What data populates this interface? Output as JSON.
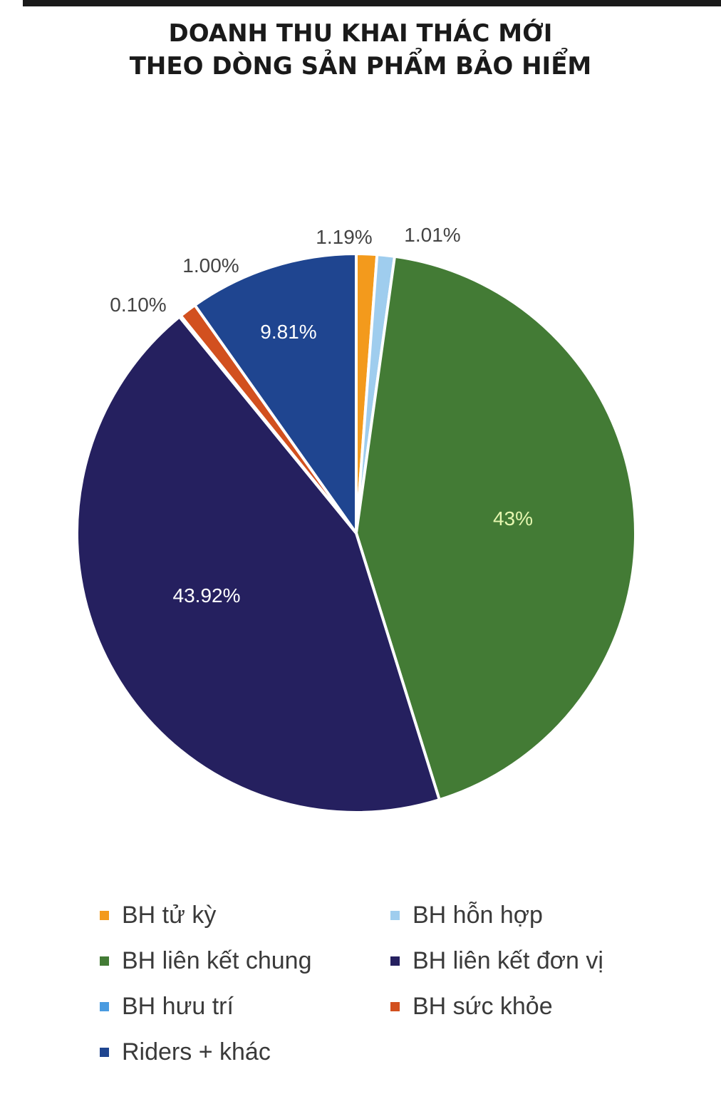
{
  "title": {
    "line1": "DOANH THU KHAI THÁC MỚI",
    "line2": "THEO DÒNG SẢN PHẨM BẢO HIỂM"
  },
  "chart_data": {
    "type": "pie",
    "title": "DOANH THU KHAI THÁC MỚI THEO DÒNG SẢN PHẨM BẢO HIỂM",
    "legend_position": "bottom",
    "slices": [
      {
        "name": "BH tử kỳ",
        "value": 1.19,
        "label": "1.19%",
        "color": "#f39a1c"
      },
      {
        "name": "BH hỗn hợp",
        "value": 1.01,
        "label": "1.01%",
        "color": "#9fcdee"
      },
      {
        "name": "BH liên kết chung",
        "value": 43.0,
        "label": "43%",
        "color": "#437b35"
      },
      {
        "name": "BH liên kết đơn vị",
        "value": 43.92,
        "label": "43.92%",
        "color": "#25205f"
      },
      {
        "name": "BH hưu trí",
        "value": 0.1,
        "label": "0.10%",
        "color": "#4a9be0"
      },
      {
        "name": "BH sức khỏe",
        "value": 1.0,
        "label": "1.00%",
        "color": "#d2501f"
      },
      {
        "name": "Riders + khác",
        "value": 9.81,
        "label": "9.81%",
        "color": "#1f4590"
      }
    ]
  }
}
